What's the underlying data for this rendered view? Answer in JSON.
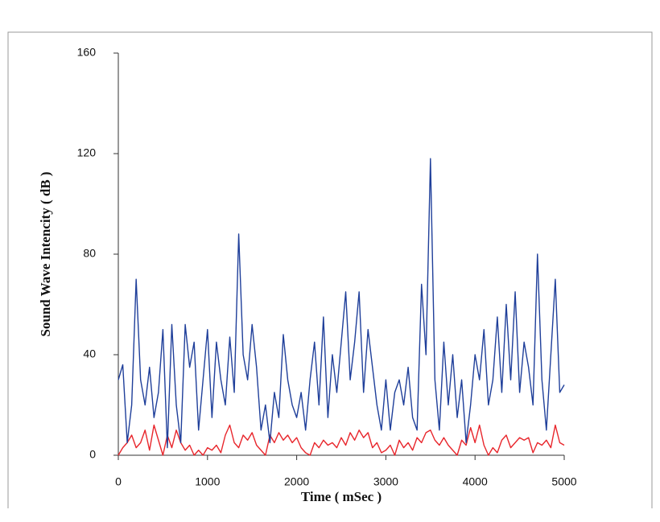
{
  "chart_data": {
    "type": "line",
    "xlabel": "Time ( mSec )",
    "ylabel": "Sound Wave Intencity ( dB )",
    "x": [
      0,
      50,
      100,
      150,
      200,
      250,
      300,
      350,
      400,
      450,
      500,
      550,
      600,
      650,
      700,
      750,
      800,
      850,
      900,
      950,
      1000,
      1050,
      1100,
      1150,
      1200,
      1250,
      1300,
      1350,
      1400,
      1450,
      1500,
      1550,
      1600,
      1650,
      1700,
      1750,
      1800,
      1850,
      1900,
      1950,
      2000,
      2050,
      2100,
      2150,
      2200,
      2250,
      2300,
      2350,
      2400,
      2450,
      2500,
      2550,
      2600,
      2650,
      2700,
      2750,
      2800,
      2850,
      2900,
      2950,
      3000,
      3050,
      3100,
      3150,
      3200,
      3250,
      3300,
      3350,
      3400,
      3450,
      3500,
      3550,
      3600,
      3650,
      3700,
      3750,
      3800,
      3850,
      3900,
      3950,
      4000,
      4050,
      4100,
      4150,
      4200,
      4250,
      4300,
      4350,
      4400,
      4450,
      4500,
      4550,
      4600,
      4650,
      4700,
      4750,
      4800,
      4850,
      4900,
      4950,
      5000
    ],
    "series": [
      {
        "color": "#1f3f9a",
        "values": [
          30,
          36,
          5,
          20,
          70,
          30,
          20,
          35,
          15,
          25,
          50,
          3,
          52,
          20,
          5,
          52,
          35,
          45,
          10,
          30,
          50,
          15,
          45,
          30,
          20,
          47,
          25,
          88,
          40,
          30,
          52,
          35,
          10,
          20,
          5,
          25,
          15,
          48,
          30,
          20,
          15,
          25,
          10,
          30,
          45,
          20,
          55,
          15,
          40,
          25,
          45,
          65,
          30,
          45,
          65,
          25,
          50,
          35,
          20,
          10,
          30,
          10,
          25,
          30,
          20,
          35,
          15,
          10,
          68,
          40,
          118,
          30,
          10,
          45,
          20,
          40,
          15,
          30,
          5,
          20,
          40,
          30,
          50,
          20,
          30,
          55,
          25,
          60,
          30,
          65,
          25,
          45,
          35,
          20,
          80,
          30,
          10,
          40,
          70,
          25,
          28
        ]
      },
      {
        "color": "#e8262c",
        "values": [
          0,
          3,
          5,
          8,
          3,
          5,
          10,
          2,
          12,
          6,
          0,
          8,
          3,
          10,
          5,
          2,
          4,
          0,
          2,
          0,
          3,
          2,
          4,
          1,
          8,
          12,
          5,
          3,
          8,
          6,
          9,
          4,
          2,
          0,
          8,
          5,
          9,
          6,
          8,
          5,
          7,
          3,
          1,
          0,
          5,
          3,
          6,
          4,
          5,
          3,
          7,
          4,
          9,
          6,
          10,
          7,
          9,
          3,
          5,
          1,
          2,
          4,
          0,
          6,
          3,
          5,
          2,
          7,
          5,
          9,
          10,
          6,
          4,
          7,
          4,
          2,
          0,
          6,
          4,
          11,
          5,
          12,
          4,
          0,
          3,
          1,
          6,
          8,
          3,
          5,
          7,
          6,
          7,
          1,
          5,
          4,
          6,
          3,
          12,
          5,
          4
        ]
      }
    ],
    "xlim": [
      0,
      5000
    ],
    "xticks": [
      0,
      1000,
      2000,
      3000,
      4000,
      5000
    ],
    "ylim": [
      0,
      160
    ],
    "yticks": [
      0,
      40,
      80,
      120,
      160
    ]
  }
}
